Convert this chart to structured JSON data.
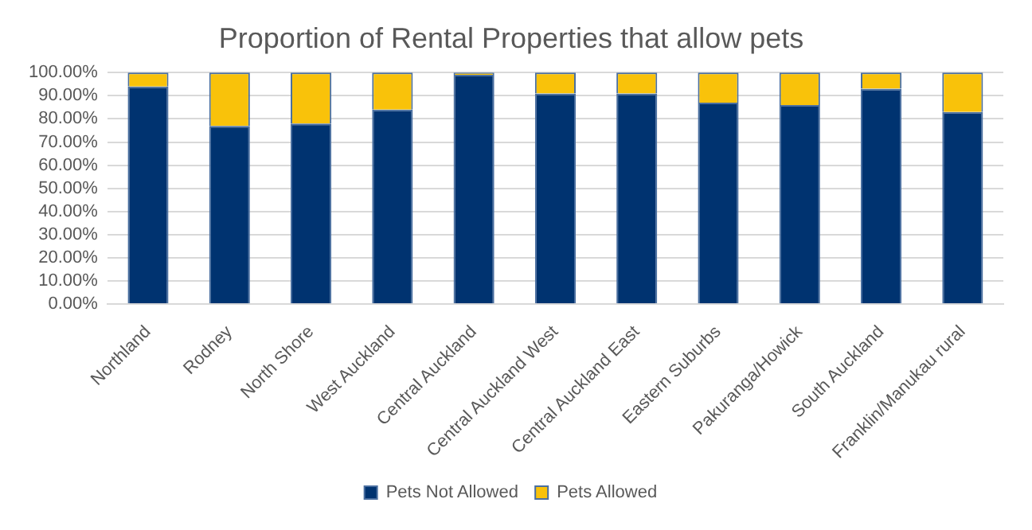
{
  "chart_data": {
    "type": "bar",
    "title": "Proportion of Rental Properties that allow pets",
    "stacked": true,
    "categories": [
      "Northland",
      "Rodney",
      "North Shore",
      "West Auckland",
      "Central Auckland",
      "Central Auckland West",
      "Central Auckland East",
      "Eastern Suburbs",
      "Pakuranga/Howick",
      "South Auckland",
      "Franklin/Manukau rural"
    ],
    "series": [
      {
        "name": "Pets Not Allowed",
        "color": "#003370",
        "values": [
          94,
          77,
          78,
          84,
          99,
          91,
          91,
          87,
          86,
          93,
          83
        ]
      },
      {
        "name": "Pets Allowed",
        "color": "#f9c20a",
        "values": [
          6,
          23,
          22,
          16,
          1,
          9,
          9,
          13,
          14,
          7,
          17
        ]
      }
    ],
    "ylim": [
      0,
      100
    ],
    "yticks": [
      {
        "value": 0,
        "label": "0.00%"
      },
      {
        "value": 10,
        "label": "10.00%"
      },
      {
        "value": 20,
        "label": "20.00%"
      },
      {
        "value": 30,
        "label": "30.00%"
      },
      {
        "value": 40,
        "label": "40.00%"
      },
      {
        "value": 50,
        "label": "50.00%"
      },
      {
        "value": 60,
        "label": "60.00%"
      },
      {
        "value": 70,
        "label": "70.00%"
      },
      {
        "value": 80,
        "label": "80.00%"
      },
      {
        "value": 90,
        "label": "90.00%"
      },
      {
        "value": 100,
        "label": "100.00%"
      }
    ],
    "grid": "y",
    "legend": "bottom"
  }
}
